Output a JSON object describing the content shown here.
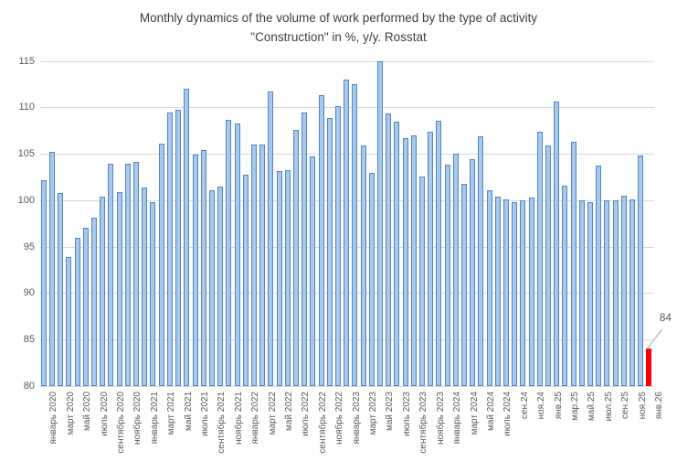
{
  "title": {
    "line1": "Monthly dynamics of the volume of work performed by the type of activity",
    "line2": "\"Construction\" in %, y/y. Rosstat"
  },
  "chart_data": {
    "type": "bar",
    "title": "Monthly dynamics of the volume of work performed by the type of activity \"Construction\" in %, y/y. Rosstat",
    "ylabel": "",
    "xlabel": "",
    "ylim": [
      80,
      115
    ],
    "yticks": [
      80,
      85,
      90,
      95,
      100,
      105,
      110,
      115
    ],
    "grid": "horizontal",
    "legend": "none",
    "colors": {
      "bar_fill": "#a9c8ea",
      "bar_border": "#4f87c5",
      "highlight": "#ff0000",
      "gridline": "#d9d9d9",
      "axis_text": "#595959",
      "title_text": "#3f3f3f"
    },
    "annotation": {
      "text": "84",
      "target_index": 72
    },
    "points": [
      {
        "label": "январь 2020",
        "value": 102.2
      },
      {
        "label": "",
        "value": 105.2
      },
      {
        "label": "март 2020",
        "value": 100.8
      },
      {
        "label": "",
        "value": 93.9
      },
      {
        "label": "май 2020",
        "value": 95.9
      },
      {
        "label": "",
        "value": 97.0
      },
      {
        "label": "июль 2020",
        "value": 98.1
      },
      {
        "label": "",
        "value": 100.4
      },
      {
        "label": "сентябрь 2020",
        "value": 103.9
      },
      {
        "label": "",
        "value": 100.9
      },
      {
        "label": "ноябрь 2020",
        "value": 103.9
      },
      {
        "label": "",
        "value": 104.1
      },
      {
        "label": "январь 2021",
        "value": 101.4
      },
      {
        "label": "",
        "value": 99.8
      },
      {
        "label": "март 2021",
        "value": 106.1
      },
      {
        "label": "",
        "value": 109.4
      },
      {
        "label": "май 2021",
        "value": 109.7
      },
      {
        "label": "",
        "value": 112.0
      },
      {
        "label": "июль 2021",
        "value": 104.9
      },
      {
        "label": "",
        "value": 105.4
      },
      {
        "label": "сентябрь 2021",
        "value": 101.1
      },
      {
        "label": "",
        "value": 101.5
      },
      {
        "label": "ноябрь 2021",
        "value": 108.7
      },
      {
        "label": "",
        "value": 108.3
      },
      {
        "label": "январь 2022",
        "value": 102.7
      },
      {
        "label": "",
        "value": 106.0
      },
      {
        "label": "март 2022",
        "value": 106.0
      },
      {
        "label": "",
        "value": 111.7
      },
      {
        "label": "май 2022",
        "value": 103.1
      },
      {
        "label": "",
        "value": 103.2
      },
      {
        "label": "июль 2022",
        "value": 107.6
      },
      {
        "label": "",
        "value": 109.4
      },
      {
        "label": "сентябрь 2022",
        "value": 104.7
      },
      {
        "label": "",
        "value": 111.3
      },
      {
        "label": "ноябрь 2022",
        "value": 108.9
      },
      {
        "label": "",
        "value": 110.1
      },
      {
        "label": "январь 2023",
        "value": 113.0
      },
      {
        "label": "",
        "value": 112.5
      },
      {
        "label": "март 2023",
        "value": 105.9
      },
      {
        "label": "",
        "value": 102.9
      },
      {
        "label": "май 2023",
        "value": 115.0
      },
      {
        "label": "",
        "value": 109.3
      },
      {
        "label": "июль 2023",
        "value": 108.5
      },
      {
        "label": "",
        "value": 106.7
      },
      {
        "label": "сентябрь 2023",
        "value": 107.0
      },
      {
        "label": "",
        "value": 102.5
      },
      {
        "label": "ноябрь 2023",
        "value": 107.4
      },
      {
        "label": "",
        "value": 108.6
      },
      {
        "label": "январь 2024",
        "value": 103.8
      },
      {
        "label": "",
        "value": 105.0
      },
      {
        "label": "март 2024",
        "value": 101.8
      },
      {
        "label": "",
        "value": 104.4
      },
      {
        "label": "май 2024",
        "value": 106.9
      },
      {
        "label": "",
        "value": 101.1
      },
      {
        "label": "июль 2024",
        "value": 100.4
      },
      {
        "label": "",
        "value": 100.1
      },
      {
        "label": "сен.24",
        "value": 99.8
      },
      {
        "label": "",
        "value": 100.0
      },
      {
        "label": "ноя.24",
        "value": 100.3
      },
      {
        "label": "",
        "value": 107.4
      },
      {
        "label": "янв.25",
        "value": 105.9
      },
      {
        "label": "",
        "value": 110.6
      },
      {
        "label": "мар.25",
        "value": 101.6
      },
      {
        "label": "",
        "value": 106.3
      },
      {
        "label": "май.25",
        "value": 100.0
      },
      {
        "label": "",
        "value": 99.8
      },
      {
        "label": "июл.25",
        "value": 103.7
      },
      {
        "label": "",
        "value": 100.0
      },
      {
        "label": "сен.25",
        "value": 100.0
      },
      {
        "label": "",
        "value": 100.5
      },
      {
        "label": "ноя.25",
        "value": 100.1
      },
      {
        "label": "",
        "value": 104.8
      },
      {
        "label": "янв.26",
        "value": 84.0,
        "highlight": true
      }
    ]
  }
}
